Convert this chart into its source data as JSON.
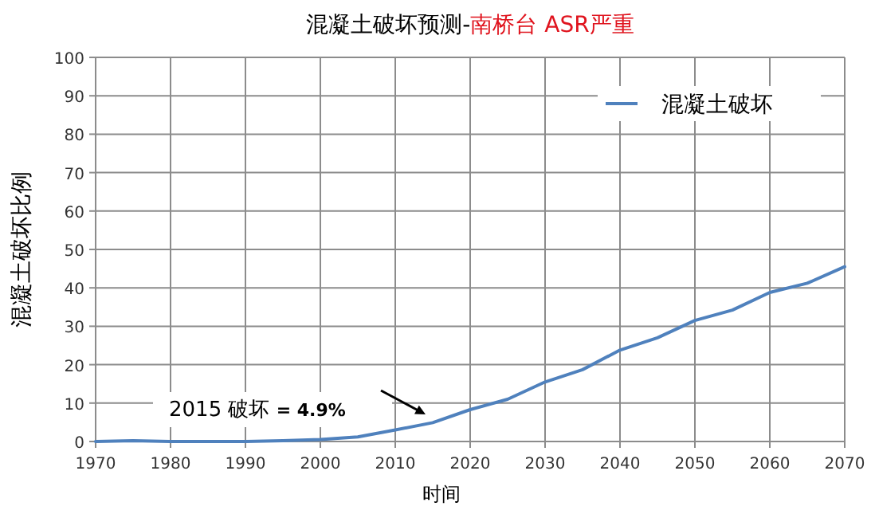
{
  "chart_data": {
    "type": "line",
    "title": "混凝土破坏预测-",
    "subtitle": "南桥台 ASR严重",
    "xlabel": "时间",
    "ylabel": "混凝土破坏比例",
    "x": [
      1970,
      1975,
      1980,
      1985,
      1990,
      1995,
      2000,
      2005,
      2010,
      2015,
      2020,
      2025,
      2030,
      2035,
      2040,
      2045,
      2050,
      2055,
      2060,
      2065,
      2070
    ],
    "series": [
      {
        "name": "混凝土破坏",
        "color": "#4f81bd",
        "values": [
          0,
          0.2,
          0,
          0,
          0,
          0.2,
          0.5,
          1.2,
          3,
          4.9,
          8.3,
          11,
          15.5,
          18.7,
          23.8,
          27,
          31.5,
          34.2,
          38.8,
          41.2,
          45.5
        ]
      }
    ],
    "xlim": [
      1970,
      2070
    ],
    "xticks": [
      1970,
      1980,
      1990,
      2000,
      2010,
      2020,
      2030,
      2040,
      2050,
      2060,
      2070
    ],
    "ylim": [
      0,
      100
    ],
    "yticks": [
      0,
      10,
      20,
      30,
      40,
      50,
      60,
      70,
      80,
      90,
      100
    ],
    "grid": true,
    "legend": "top right",
    "marker": "none",
    "line_style": "solid",
    "annotations": [
      "2015 破坏 **= 4.9%**"
    ]
  }
}
